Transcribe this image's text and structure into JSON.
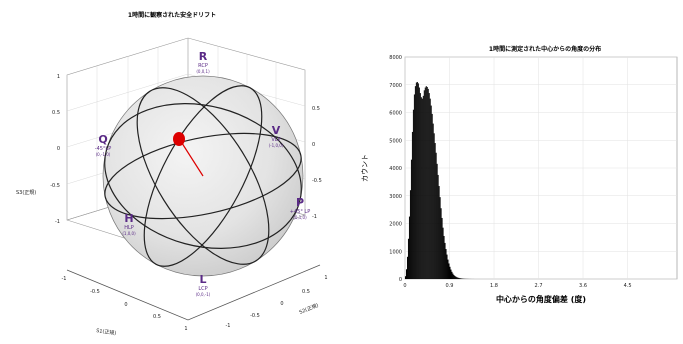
{
  "sphere": {
    "title": "1時間に観察された安全ドリフト",
    "axis_labels": {
      "s1": "S1(正規)",
      "s2": "S2(正規)",
      "s3": "S3(正規)"
    },
    "ticks": {
      "s3": [
        "1",
        "0.5",
        "0",
        "-0.5",
        "-1"
      ],
      "s1": [
        "-1",
        "-0.5",
        "0",
        "0.5",
        "1"
      ],
      "s2": [
        "-1",
        "-0.5",
        "0",
        "0.5",
        "1"
      ],
      "side": [
        "0.5",
        "0",
        "-0.5",
        "-1"
      ]
    },
    "poles": [
      {
        "key": "R",
        "label": "R",
        "sub": "RCP",
        "vec": "(0,0,1)"
      },
      {
        "key": "L",
        "label": "L",
        "sub": "LCP",
        "vec": "(0,0,-1)"
      },
      {
        "key": "Q",
        "label": "Q",
        "sub": "-45°LP",
        "vec": "(0,-1,0)"
      },
      {
        "key": "P",
        "label": "P",
        "sub": "+45° LP",
        "vec": "(0,1,0)"
      },
      {
        "key": "H",
        "label": "H",
        "sub": "HLP",
        "vec": "(1,0,0)"
      },
      {
        "key": "V",
        "label": "V",
        "sub": "VLP",
        "vec": "(-1,0,0)"
      }
    ],
    "colors": {
      "sphere": "#e3e3e3",
      "pole_text": "#5a2a86",
      "drift": "#dd0000"
    }
  },
  "chart_data": {
    "type": "histogram",
    "title": "1時間に測定された中心からの角度の分布",
    "xlabel": "中心からの角度偏差 (度)",
    "ylabel": "カウント",
    "xlim": [
      0,
      5.5
    ],
    "ylim": [
      0,
      8000
    ],
    "x_ticks": [
      "0",
      "0.9",
      "1.8",
      "2.7",
      "3.6",
      "4.5"
    ],
    "y_ticks": [
      "0",
      "1000",
      "2000",
      "3000",
      "4000",
      "5000",
      "6000",
      "7000",
      "8000"
    ],
    "bin_width": 0.02,
    "bin_starts": [
      0.0,
      0.02,
      0.04,
      0.06,
      0.08,
      0.1,
      0.12,
      0.14,
      0.16,
      0.18,
      0.2,
      0.22,
      0.24,
      0.26,
      0.28,
      0.3,
      0.32,
      0.34,
      0.36,
      0.38,
      0.4,
      0.42,
      0.44,
      0.46,
      0.48,
      0.5,
      0.52,
      0.54,
      0.56,
      0.58,
      0.6,
      0.62,
      0.64,
      0.66,
      0.68,
      0.7,
      0.72,
      0.74,
      0.76,
      0.78,
      0.8,
      0.82,
      0.84,
      0.86,
      0.88,
      0.9,
      0.92,
      0.94,
      0.96,
      0.98,
      1.0,
      1.02,
      1.04,
      1.06,
      1.08,
      1.1,
      1.12,
      1.14,
      1.16,
      1.18,
      1.2,
      1.22,
      1.24,
      1.26,
      1.28,
      1.3,
      1.32,
      1.34,
      1.36,
      1.38,
      1.4,
      1.42,
      1.44,
      1.46,
      1.48
    ],
    "counts": [
      100,
      350,
      800,
      1450,
      2250,
      3200,
      4300,
      5300,
      6100,
      6650,
      6950,
      7080,
      7100,
      7050,
      6900,
      6700,
      6550,
      6500,
      6600,
      6800,
      6900,
      6950,
      6920,
      6850,
      6700,
      6500,
      6250,
      5950,
      5600,
      5250,
      4900,
      4550,
      4150,
      3750,
      3350,
      2950,
      2550,
      2200,
      1850,
      1550,
      1300,
      1080,
      880,
      700,
      560,
      440,
      340,
      260,
      195,
      145,
      110,
      85,
      65,
      50,
      40,
      30,
      24,
      18,
      14,
      10,
      8,
      6,
      5,
      4,
      3,
      2,
      2,
      1,
      1,
      1,
      0,
      0,
      0,
      0,
      0
    ]
  }
}
